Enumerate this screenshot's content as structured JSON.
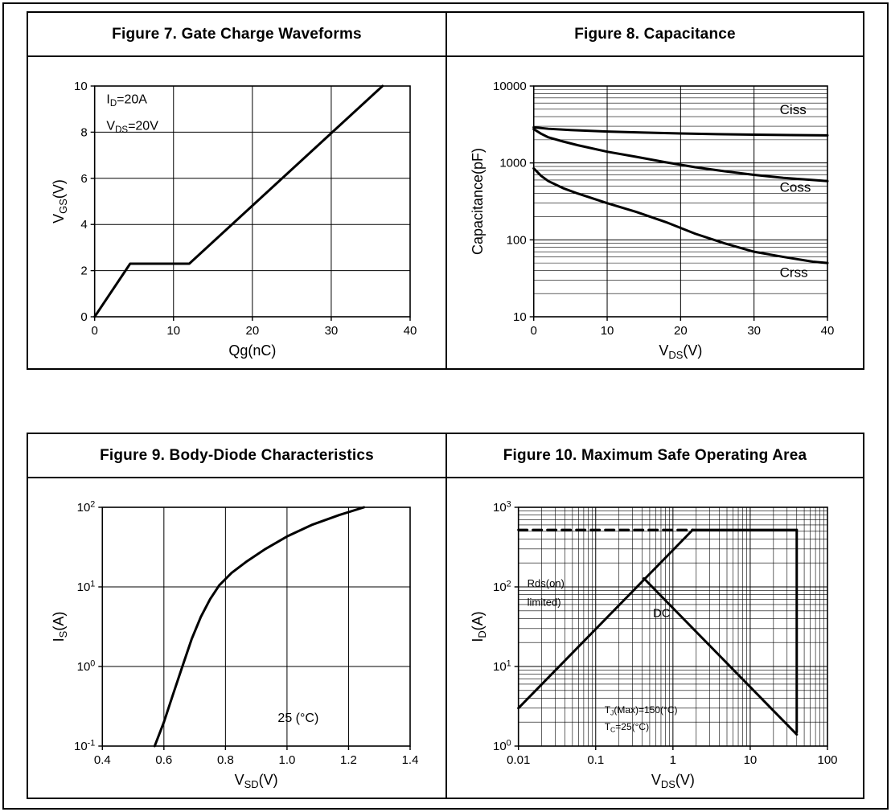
{
  "page": {
    "background": "#ffffff",
    "border_color": "#000000",
    "line_color": "#000000"
  },
  "figures": [
    {
      "title": "Figure 7. Gate Charge Waveforms"
    },
    {
      "title": "Figure 8. Capacitance"
    },
    {
      "title": "Figure 9. Body-Diode Characteristics"
    },
    {
      "title": "Figure 10. Maximum Safe Operating Area"
    }
  ],
  "chart_data": [
    {
      "type": "line",
      "title": "Figure 7. Gate Charge Waveforms",
      "xlabel": "Qg(nC)",
      "ylabel": "V_{GS}(V)",
      "x_axis": {
        "scale": "linear",
        "min": 0,
        "max": 40,
        "ticks": [
          0,
          10,
          20,
          30,
          40
        ]
      },
      "y_axis": {
        "scale": "linear",
        "min": 0,
        "max": 10,
        "ticks": [
          0,
          2,
          4,
          6,
          8,
          10
        ]
      },
      "series": [
        {
          "name": "gate-charge-curve",
          "width": 3,
          "points": [
            [
              0,
              0
            ],
            [
              4.5,
              2.3
            ],
            [
              12,
              2.3
            ],
            [
              36.5,
              10
            ]
          ]
        }
      ],
      "annotations": [
        {
          "text": "I_{D}=20A",
          "x": 1.5,
          "y": 9.25,
          "size": 16,
          "align": "left"
        },
        {
          "text": "V_{DS}=20V",
          "x": 1.5,
          "y": 8.1,
          "size": 16,
          "align": "left"
        }
      ]
    },
    {
      "type": "line",
      "title": "Figure 8. Capacitance",
      "xlabel": "V_{DS}(V)",
      "ylabel": "Capacitance(pF)",
      "x_axis": {
        "scale": "linear",
        "min": 0,
        "max": 40,
        "ticks": [
          0,
          10,
          20,
          30,
          40
        ]
      },
      "y_axis": {
        "scale": "log",
        "min": 10,
        "max": 10000,
        "tick_format": "plain",
        "minor_grid": true
      },
      "series": [
        {
          "name": "Ciss",
          "width": 3,
          "points": [
            [
              0,
              2900
            ],
            [
              2,
              2780
            ],
            [
              5,
              2680
            ],
            [
              10,
              2560
            ],
            [
              15,
              2480
            ],
            [
              20,
              2420
            ],
            [
              25,
              2370
            ],
            [
              30,
              2330
            ],
            [
              35,
              2300
            ],
            [
              40,
              2280
            ]
          ]
        },
        {
          "name": "Coss",
          "width": 3,
          "points": [
            [
              0,
              2750
            ],
            [
              1,
              2400
            ],
            [
              2,
              2150
            ],
            [
              4,
              1900
            ],
            [
              6,
              1700
            ],
            [
              10,
              1400
            ],
            [
              14,
              1200
            ],
            [
              18,
              1020
            ],
            [
              22,
              880
            ],
            [
              26,
              780
            ],
            [
              30,
              700
            ],
            [
              34,
              640
            ],
            [
              38,
              600
            ],
            [
              40,
              580
            ]
          ]
        },
        {
          "name": "Crss",
          "width": 3,
          "points": [
            [
              0,
              850
            ],
            [
              1,
              680
            ],
            [
              2,
              580
            ],
            [
              4,
              470
            ],
            [
              6,
              400
            ],
            [
              10,
              300
            ],
            [
              14,
              230
            ],
            [
              18,
              170
            ],
            [
              22,
              120
            ],
            [
              26,
              90
            ],
            [
              30,
              70
            ],
            [
              34,
              60
            ],
            [
              38,
              52
            ],
            [
              40,
              50
            ]
          ]
        }
      ],
      "annotations": [
        {
          "text": "Ciss",
          "x": 33.5,
          "y": 4300,
          "size": 17,
          "align": "left"
        },
        {
          "text": "Coss",
          "x": 33.5,
          "y": 420,
          "size": 17,
          "align": "left"
        },
        {
          "text": "Crss",
          "x": 33.5,
          "y": 33,
          "size": 17,
          "align": "left"
        }
      ]
    },
    {
      "type": "line",
      "title": "Figure 9. Body-Diode Characteristics",
      "xlabel": "V_{SD}(V)",
      "ylabel": "I_{S}(A)",
      "x_axis": {
        "scale": "linear",
        "min": 0.4,
        "max": 1.4,
        "ticks": [
          0.4,
          0.6,
          0.8,
          1.0,
          1.2,
          1.4
        ],
        "tick_labels": [
          "0.4",
          "0.6",
          "0.8",
          "1.0",
          "1.2",
          "1.4"
        ]
      },
      "y_axis": {
        "scale": "log",
        "min": 0.1,
        "max": 100,
        "tick_format": "power"
      },
      "series": [
        {
          "name": "body-diode-curve",
          "width": 3,
          "points": [
            [
              0.57,
              0.1
            ],
            [
              0.6,
              0.2
            ],
            [
              0.63,
              0.45
            ],
            [
              0.66,
              1.0
            ],
            [
              0.69,
              2.2
            ],
            [
              0.72,
              4.2
            ],
            [
              0.75,
              7
            ],
            [
              0.78,
              10.5
            ],
            [
              0.82,
              15
            ],
            [
              0.87,
              21
            ],
            [
              0.93,
              30
            ],
            [
              1.0,
              43
            ],
            [
              1.08,
              60
            ],
            [
              1.17,
              80
            ],
            [
              1.25,
              100
            ]
          ]
        }
      ],
      "annotations": [
        {
          "text": "25 (°C)",
          "x": 0.97,
          "y": 0.2,
          "size": 16,
          "align": "left"
        }
      ]
    },
    {
      "type": "line",
      "title": "Figure 10. Maximum Safe Operating Area",
      "xlabel": "V_{DS}(V)",
      "ylabel": "I_{D}(A)",
      "x_axis": {
        "scale": "log",
        "min": 0.01,
        "max": 100,
        "tick_format": "plain",
        "minor_grid": true
      },
      "y_axis": {
        "scale": "log",
        "min": 1,
        "max": 1000,
        "tick_format": "power",
        "minor_grid": true
      },
      "series": [
        {
          "name": "pulse-current-limit",
          "width": 3,
          "dash": [
            11,
            7
          ],
          "points": [
            [
              0.01,
              520
            ],
            [
              1.8,
              520
            ]
          ]
        },
        {
          "name": "rdson-limit-line",
          "width": 3,
          "points": [
            [
              0.01,
              3
            ],
            [
              1.8,
              520
            ]
          ]
        },
        {
          "name": "max-current-top",
          "width": 3,
          "points": [
            [
              1.8,
              520
            ],
            [
              40,
              520
            ]
          ]
        },
        {
          "name": "max-voltage-line",
          "width": 3,
          "points": [
            [
              40,
              520
            ],
            [
              40,
              1.5
            ]
          ]
        },
        {
          "name": "dc-power-limit",
          "width": 3,
          "points": [
            [
              0.42,
              128
            ],
            [
              40,
              1.4
            ]
          ]
        }
      ],
      "annotations": [
        {
          "text": "Rds(on)",
          "x": 0.013,
          "y": 100,
          "size": 13,
          "align": "left"
        },
        {
          "text": "limited)",
          "x": 0.013,
          "y": 58,
          "size": 13,
          "align": "left"
        },
        {
          "text": "DC",
          "x": 0.55,
          "y": 42,
          "size": 15,
          "align": "left"
        },
        {
          "text": "T_{J}(Max)=150(°C)",
          "x": 0.13,
          "y": 2.6,
          "size": 12,
          "align": "left"
        },
        {
          "text": "T_{C}=25(°C)",
          "x": 0.13,
          "y": 1.6,
          "size": 12,
          "align": "left"
        }
      ]
    }
  ]
}
